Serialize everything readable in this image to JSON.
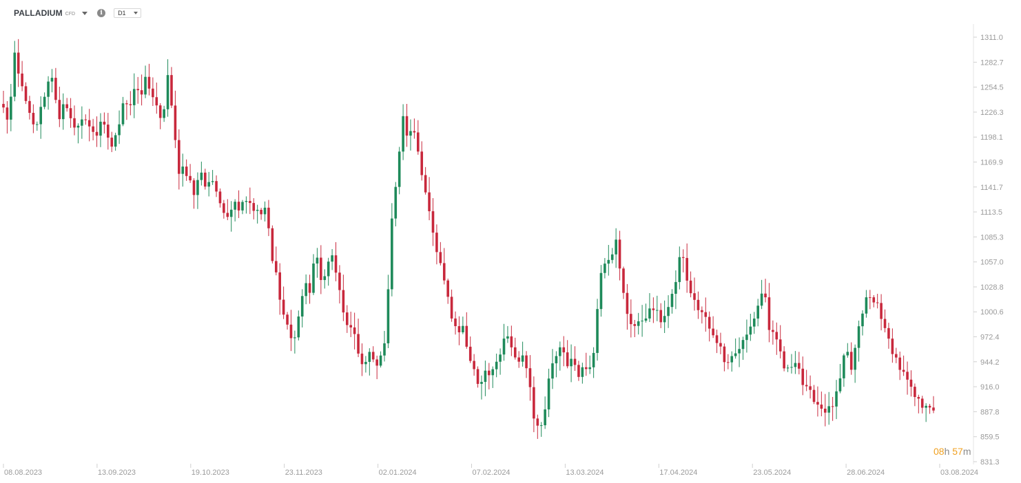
{
  "header": {
    "symbol": "PALLADIUM",
    "badge": "CFD",
    "timeframe": "D1",
    "icons": {
      "symbol_dropdown": "chevron-down-icon",
      "info": "info-icon",
      "timeframe_dropdown": "chevron-down-icon"
    }
  },
  "countdown": {
    "hours": "08",
    "hours_unit": "h",
    "minutes": "57",
    "minutes_unit": "m"
  },
  "colors": {
    "up": "#1e8a5a",
    "down": "#c8283c",
    "axis_text": "#9a9a9a",
    "countdown": "#f0a020"
  },
  "chart_data": {
    "type": "candlestick",
    "title": "",
    "xlabel": "",
    "ylabel": "",
    "ylim": [
      831.3,
      1325.0
    ],
    "y_ticks": [
      "1311.0",
      "1282.7",
      "1254.5",
      "1226.3",
      "1198.1",
      "1169.9",
      "1141.7",
      "1113.5",
      "1085.3",
      "1057.0",
      "1028.8",
      "1000.6",
      "972.4",
      "944.2",
      "916.0",
      "887.8",
      "859.5",
      "831.3"
    ],
    "x_ticks": [
      "08.08.2023",
      "13.09.2023",
      "19.10.2023",
      "23.11.2023",
      "02.01.2024",
      "07.02.2024",
      "13.03.2024",
      "17.04.2024",
      "23.05.2024",
      "28.06.2024",
      "03.08.2024"
    ],
    "close_path": [
      1230,
      1215,
      1290,
      1260,
      1245,
      1215,
      1205,
      1235,
      1255,
      1270,
      1215,
      1240,
      1220,
      1205,
      1220,
      1215,
      1210,
      1200,
      1215,
      1200,
      1185,
      1210,
      1245,
      1230,
      1255,
      1240,
      1265,
      1250,
      1230,
      1210,
      1270,
      1215,
      1160,
      1165,
      1150,
      1130,
      1165,
      1140,
      1155,
      1130,
      1120,
      1110,
      1125,
      1120,
      1130,
      1125,
      1115,
      1110,
      1120,
      1060,
      1040,
      1000,
      985,
      960,
      1000,
      1030,
      1025,
      1070,
      1035,
      1050,
      1065,
      1040,
      1000,
      985,
      975,
      950,
      940,
      955,
      935,
      950,
      980,
      1110,
      1160,
      1220,
      1195,
      1210,
      1170,
      1140,
      1115,
      1070,
      1050,
      1020,
      990,
      975,
      990,
      950,
      935,
      910,
      935,
      925,
      940,
      960,
      980,
      955,
      945,
      950,
      930,
      880,
      870,
      890,
      935,
      950,
      960,
      940,
      950,
      930,
      935,
      940,
      955,
      1045,
      1060,
      1065,
      1080,
      1030,
      1000,
      985,
      985,
      995,
      1000,
      1005,
      990,
      1000,
      1010,
      1040,
      1075,
      1030,
      1020,
      1000,
      1000,
      980,
      975,
      960,
      945,
      950,
      955,
      965,
      975,
      990,
      1010,
      1030,
      980,
      970,
      955,
      930,
      940,
      950,
      920,
      910,
      905,
      895,
      890,
      890,
      900,
      925,
      960,
      935,
      970,
      1000,
      1020,
      1010,
      1010,
      980,
      965,
      950,
      935,
      925,
      910,
      900,
      895,
      900,
      885
    ]
  }
}
